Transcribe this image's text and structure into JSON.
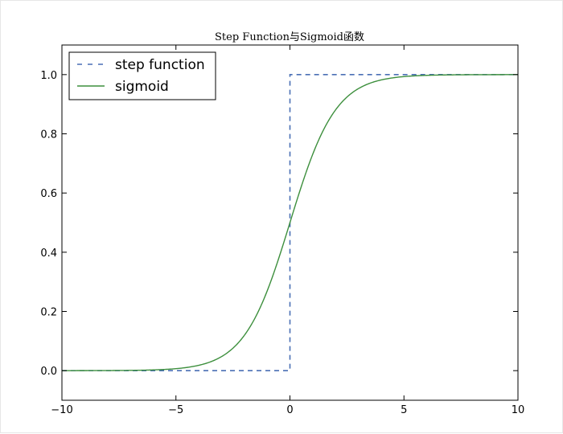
{
  "chart_data": {
    "type": "line",
    "title": "Step Function与Sigmoid函数",
    "xlabel": "",
    "ylabel": "",
    "xlim": [
      -10,
      10
    ],
    "ylim": [
      -0.1,
      1.1
    ],
    "x_ticks": [
      -10,
      -5,
      0,
      5,
      10
    ],
    "x_tick_labels": [
      "−10",
      "−5",
      "0",
      "5",
      "10"
    ],
    "y_ticks": [
      0.0,
      0.2,
      0.4,
      0.6,
      0.8,
      1.0
    ],
    "y_tick_labels": [
      "0.0",
      "0.2",
      "0.4",
      "0.6",
      "0.8",
      "1.0"
    ],
    "grid": false,
    "legend_position": "top-left",
    "series": [
      {
        "name": "step function",
        "style": "dashed",
        "color": "#4a6fb5",
        "x": [
          -10,
          0,
          0,
          10
        ],
        "y": [
          0,
          0,
          1,
          1
        ]
      },
      {
        "name": "sigmoid",
        "style": "solid",
        "color": "#3d8f3d",
        "x": [
          -10,
          -9,
          -8,
          -7,
          -6,
          -5,
          -4,
          -3,
          -2,
          -1,
          0,
          1,
          2,
          3,
          4,
          5,
          6,
          7,
          8,
          9,
          10
        ],
        "y": [
          4.54e-05,
          0.0001234,
          0.0003354,
          0.000911,
          0.002473,
          0.006693,
          0.017986,
          0.047426,
          0.119203,
          0.268941,
          0.5,
          0.731059,
          0.880797,
          0.952574,
          0.982014,
          0.993307,
          0.997527,
          0.999089,
          0.999665,
          0.999877,
          0.999955
        ]
      }
    ]
  }
}
